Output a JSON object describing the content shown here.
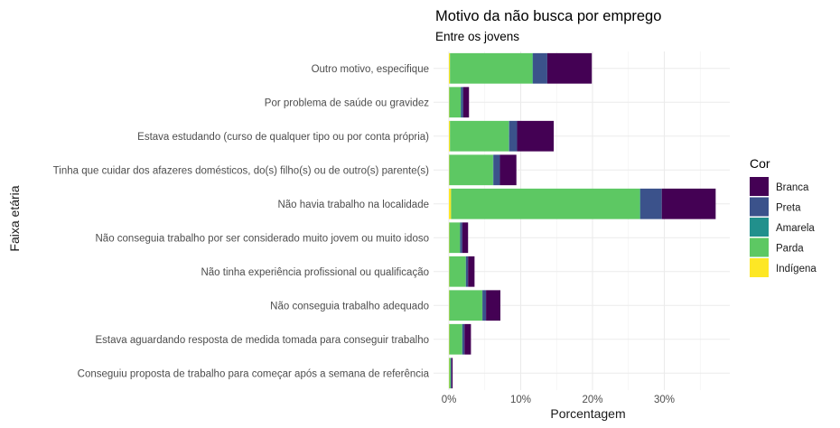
{
  "chart_data": {
    "type": "bar",
    "orientation": "horizontal",
    "stacked": true,
    "title": "Motivo da não busca por emprego",
    "subtitle": "Entre os jovens",
    "xlabel": "Porcentagem",
    "ylabel": "Faixa etária",
    "xlim": [
      0,
      38
    ],
    "xticks": [
      0,
      10,
      20,
      30
    ],
    "xtick_labels": [
      "0%",
      "10%",
      "20%",
      "30%"
    ],
    "grid": true,
    "legend": {
      "title": "Cor",
      "position": "right"
    },
    "categories": [
      "Outro motivo, especifique",
      "Por problema de saúde ou gravidez",
      "Estava estudando (curso de qualquer tipo ou por conta própria)",
      "Tinha que cuidar dos afazeres domésticos, do(s) filho(s) ou de outro(s) parente(s)",
      "Não havia trabalho na localidade",
      "Não conseguia trabalho por ser considerado muito jovem ou muito idoso",
      "Não tinha experiência profissional ou qualificação",
      "Não conseguia trabalho adequado",
      "Estava aguardando resposta de medida tomada para conseguir trabalho",
      "Conseguiu proposta de trabalho para começar após a semana de referência"
    ],
    "series": [
      {
        "name": "Indígena",
        "color": "#FDE725",
        "values": [
          0.15,
          0.05,
          0.15,
          0.05,
          0.3,
          0.05,
          0.05,
          0.05,
          0.05,
          0.05
        ]
      },
      {
        "name": "Parda",
        "color": "#5DC863",
        "values": [
          11.5,
          1.6,
          8.2,
          6.1,
          26.3,
          1.5,
          2.3,
          4.6,
          1.8,
          0.2
        ]
      },
      {
        "name": "Amarela",
        "color": "#21908C",
        "values": [
          0.05,
          0.05,
          0.05,
          0.05,
          0.05,
          0.02,
          0.02,
          0.02,
          0.02,
          0.02
        ]
      },
      {
        "name": "Preta",
        "color": "#3B528B",
        "values": [
          2.0,
          0.3,
          1.1,
          0.9,
          3.0,
          0.3,
          0.3,
          0.5,
          0.3,
          0.1
        ]
      },
      {
        "name": "Branca",
        "color": "#440154",
        "values": [
          6.2,
          0.8,
          5.1,
          2.3,
          7.5,
          0.8,
          0.9,
          2.0,
          0.9,
          0.15
        ]
      }
    ],
    "legend_order": [
      "Branca",
      "Preta",
      "Amarela",
      "Parda",
      "Indígena"
    ]
  }
}
